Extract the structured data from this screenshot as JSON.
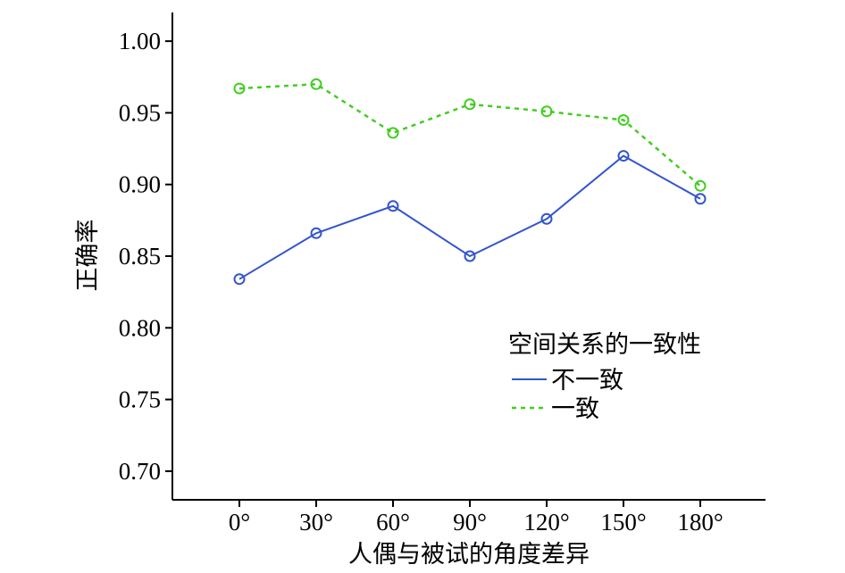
{
  "chart_data": {
    "type": "line",
    "xlabel": "人偶与被试的角度差异",
    "ylabel": "正确率",
    "categories": [
      "0°",
      "30°",
      "60°",
      "90°",
      "120°",
      "150°",
      "180°"
    ],
    "ylim": [
      0.68,
      1.02
    ],
    "yticks": [
      "0.70",
      "0.75",
      "0.80",
      "0.85",
      "0.90",
      "0.95",
      "1.00"
    ],
    "legend": {
      "title": "空间关系的一致性",
      "placement": "lower-right"
    },
    "series": [
      {
        "name": "不一致",
        "values": [
          0.834,
          0.866,
          0.885,
          0.85,
          0.876,
          0.92,
          0.89
        ],
        "color": "#3355cc",
        "style": "solid"
      },
      {
        "name": "一致",
        "values": [
          0.967,
          0.97,
          0.936,
          0.956,
          0.951,
          0.945,
          0.899
        ],
        "color": "#44cc22",
        "style": "dashed"
      }
    ]
  }
}
